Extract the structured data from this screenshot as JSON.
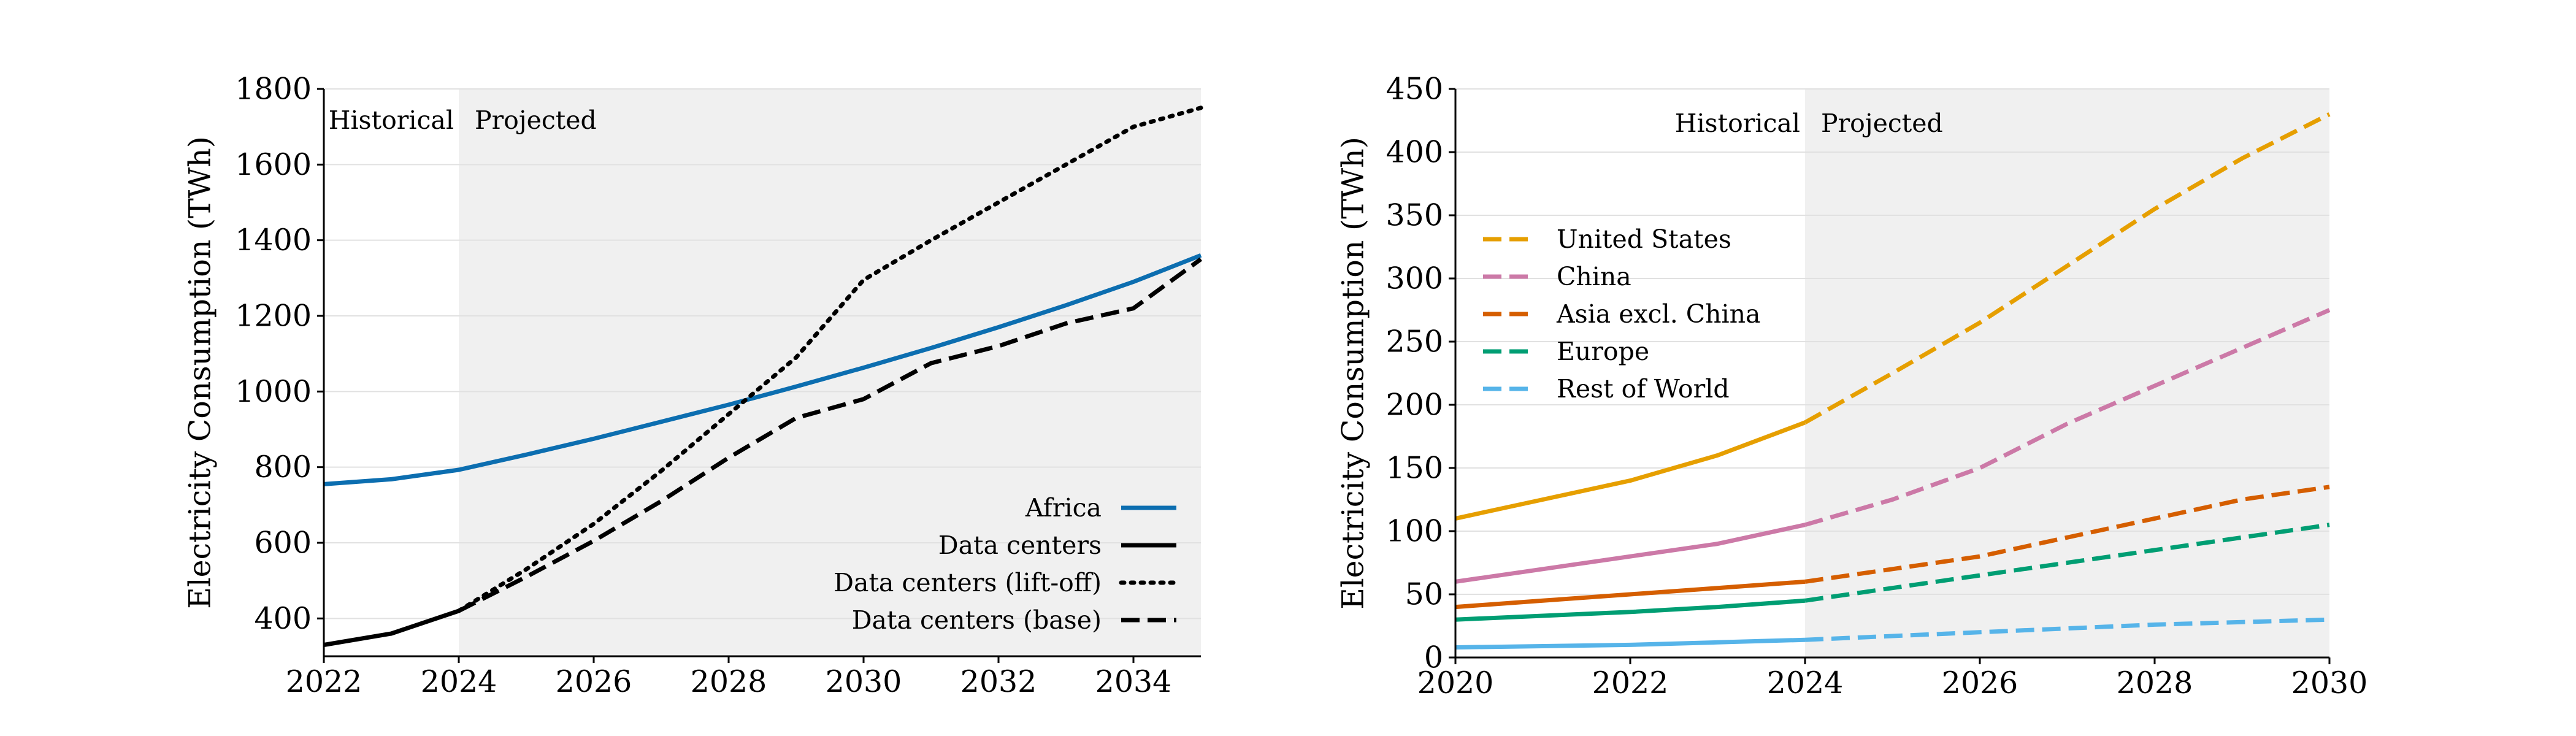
{
  "chart_data": [
    {
      "type": "line",
      "ylabel": "Electricity Consumption (TWh)",
      "xlabel": "",
      "xlim": [
        2022,
        2035
      ],
      "ylim": [
        300,
        1800
      ],
      "xticks": [
        2022,
        2024,
        2026,
        2028,
        2030,
        2032,
        2034
      ],
      "yticks": [
        400,
        600,
        800,
        1000,
        1200,
        1400,
        1600,
        1800
      ],
      "grid": "horizontal",
      "legend_position": "bottom-right",
      "legend_marker_side": "right",
      "projection_start": 2024,
      "historical_label": "Historical",
      "projected_label": "Projected",
      "colors": {
        "shade": "#f0f0f0",
        "grid": "#e1e1e1"
      },
      "series": [
        {
          "name": "Africa",
          "color": "#0c6eb0",
          "style": "solid",
          "points": [
            [
              2022,
              755
            ],
            [
              2023,
              768
            ],
            [
              2024,
              793
            ],
            [
              2025,
              833
            ],
            [
              2026,
              875
            ],
            [
              2027,
              920
            ],
            [
              2028,
              965
            ],
            [
              2029,
              1013
            ],
            [
              2030,
              1063
            ],
            [
              2031,
              1115
            ],
            [
              2032,
              1170
            ],
            [
              2033,
              1228
            ],
            [
              2034,
              1290
            ],
            [
              2035,
              1360
            ]
          ]
        },
        {
          "name": "Data centers",
          "color": "#000000",
          "style": "solid",
          "points": [
            [
              2022,
              330
            ],
            [
              2023,
              360
            ],
            [
              2024,
              420
            ]
          ]
        },
        {
          "name": "Data centers (lift-off)",
          "color": "#000000",
          "style": "dotted",
          "points": [
            [
              2024,
              420
            ],
            [
              2025,
              530
            ],
            [
              2026,
              650
            ],
            [
              2027,
              790
            ],
            [
              2028,
              940
            ],
            [
              2029,
              1090
            ],
            [
              2030,
              1295
            ],
            [
              2031,
              1400
            ],
            [
              2032,
              1500
            ],
            [
              2033,
              1600
            ],
            [
              2034,
              1700
            ],
            [
              2035,
              1750
            ]
          ]
        },
        {
          "name": "Data centers (base)",
          "color": "#000000",
          "style": "dashed",
          "points": [
            [
              2024,
              420
            ],
            [
              2025,
              510
            ],
            [
              2026,
              605
            ],
            [
              2027,
              710
            ],
            [
              2028,
              825
            ],
            [
              2029,
              930
            ],
            [
              2030,
              980
            ],
            [
              2031,
              1075
            ],
            [
              2032,
              1120
            ],
            [
              2033,
              1180
            ],
            [
              2034,
              1220
            ],
            [
              2035,
              1350
            ]
          ]
        }
      ]
    },
    {
      "type": "line",
      "ylabel": "Electricity Consumption (TWh)",
      "xlabel": "",
      "xlim": [
        2020,
        2030
      ],
      "ylim": [
        0,
        450
      ],
      "xticks": [
        2020,
        2022,
        2024,
        2026,
        2028,
        2030
      ],
      "yticks": [
        0,
        50,
        100,
        150,
        200,
        250,
        300,
        350,
        400,
        450
      ],
      "grid": "horizontal",
      "legend_position": "upper-left",
      "legend_marker_side": "left",
      "projection_start": 2024,
      "historical_label": "Historical",
      "projected_label": "Projected",
      "colors": {
        "shade": "#f0f0f0",
        "grid": "#e1e1e1"
      },
      "series": [
        {
          "name": "United States",
          "color": "#e69f00",
          "legend_style": "dashed",
          "historical": [
            [
              2020,
              110
            ],
            [
              2021,
              125
            ],
            [
              2022,
              140
            ],
            [
              2023,
              160
            ],
            [
              2024,
              186
            ]
          ],
          "projected": [
            [
              2024,
              186
            ],
            [
              2025,
              225
            ],
            [
              2026,
              265
            ],
            [
              2027,
              310
            ],
            [
              2028,
              355
            ],
            [
              2029,
              395
            ],
            [
              2030,
              430
            ]
          ]
        },
        {
          "name": "China",
          "color": "#cc79a7",
          "legend_style": "dashed",
          "historical": [
            [
              2020,
              60
            ],
            [
              2021,
              70
            ],
            [
              2022,
              80
            ],
            [
              2023,
              90
            ],
            [
              2024,
              105
            ]
          ],
          "projected": [
            [
              2024,
              105
            ],
            [
              2025,
              125
            ],
            [
              2026,
              150
            ],
            [
              2027,
              185
            ],
            [
              2028,
              215
            ],
            [
              2029,
              245
            ],
            [
              2030,
              275
            ]
          ]
        },
        {
          "name": "Asia excl. China",
          "color": "#d55e00",
          "legend_style": "dashed",
          "historical": [
            [
              2020,
              40
            ],
            [
              2021,
              45
            ],
            [
              2022,
              50
            ],
            [
              2023,
              55
            ],
            [
              2024,
              60
            ]
          ],
          "projected": [
            [
              2024,
              60
            ],
            [
              2025,
              70
            ],
            [
              2026,
              80
            ],
            [
              2027,
              95
            ],
            [
              2028,
              110
            ],
            [
              2029,
              125
            ],
            [
              2030,
              135
            ]
          ]
        },
        {
          "name": "Europe",
          "color": "#009e73",
          "legend_style": "dashed",
          "historical": [
            [
              2020,
              30
            ],
            [
              2021,
              33
            ],
            [
              2022,
              36
            ],
            [
              2023,
              40
            ],
            [
              2024,
              45
            ]
          ],
          "projected": [
            [
              2024,
              45
            ],
            [
              2025,
              55
            ],
            [
              2026,
              65
            ],
            [
              2027,
              75
            ],
            [
              2028,
              85
            ],
            [
              2029,
              95
            ],
            [
              2030,
              105
            ]
          ]
        },
        {
          "name": "Rest of World",
          "color": "#56b4e9",
          "legend_style": "dashed",
          "historical": [
            [
              2020,
              8
            ],
            [
              2021,
              9
            ],
            [
              2022,
              10
            ],
            [
              2023,
              12
            ],
            [
              2024,
              14
            ]
          ],
          "projected": [
            [
              2024,
              14
            ],
            [
              2025,
              17
            ],
            [
              2026,
              20
            ],
            [
              2027,
              23
            ],
            [
              2028,
              26
            ],
            [
              2029,
              28
            ],
            [
              2030,
              30
            ]
          ]
        }
      ]
    }
  ]
}
